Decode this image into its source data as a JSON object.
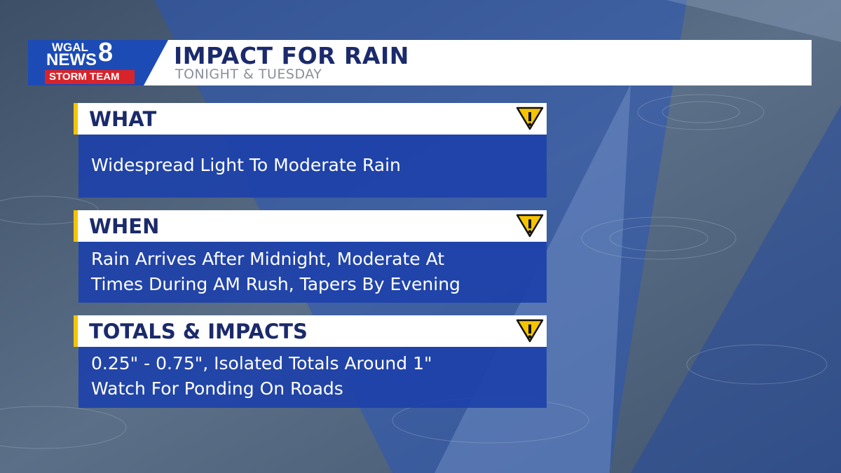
{
  "logo": {
    "line1": "WGAL",
    "line2": "NEWS",
    "number": "8",
    "badge": "STORM TEAM"
  },
  "header": {
    "title": "IMPACT FOR RAIN",
    "subtitle": "TONIGHT & TUESDAY"
  },
  "sections": [
    {
      "heading": "WHAT",
      "lines": [
        "Widespread Light To Moderate Rain"
      ]
    },
    {
      "heading": "WHEN",
      "lines": [
        "Rain Arrives After Midnight, Moderate At",
        "Times During AM Rush, Tapers By Evening"
      ]
    },
    {
      "heading": "TOTALS & IMPACTS",
      "lines": [
        "0.25\" - 0.75\", Isolated Totals Around 1\"",
        "Watch For Ponding On Roads"
      ]
    }
  ]
}
